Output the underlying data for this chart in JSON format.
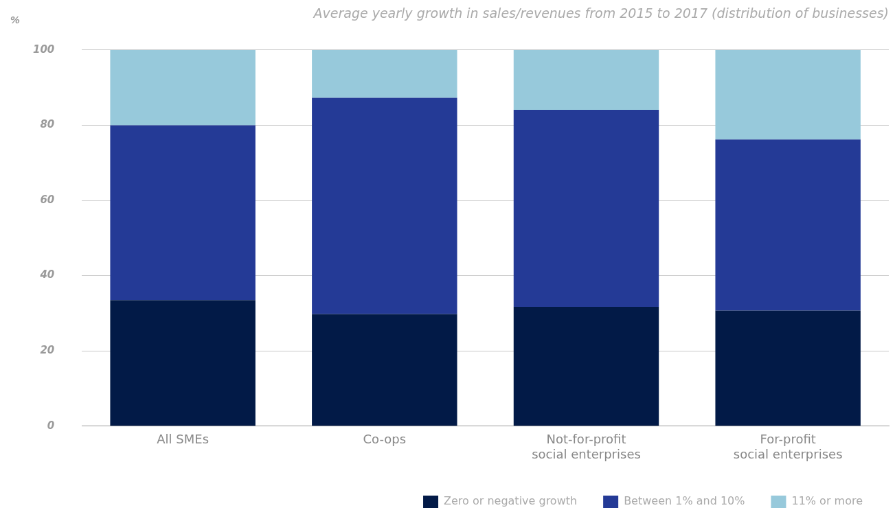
{
  "chart_data": {
    "type": "bar",
    "title": "Average yearly growth in sales/revenues from 2015 to 2017 (distribution of businesses)",
    "ylabel": "%",
    "categories": [
      "All SMEs",
      "Co-ops",
      "Not-for-profit\nsocial enterprises",
      "For-profit\nsocial enterprises"
    ],
    "stacked": true,
    "series": [
      {
        "name": "Zero or negative growth",
        "color": "#021a47",
        "values": [
          33.5,
          29.8,
          31.7,
          30.7
        ]
      },
      {
        "name": "Between 1% and 10%",
        "color": "#243a96",
        "values": [
          46.5,
          57.5,
          52.4,
          45.5
        ]
      },
      {
        "name": "11% or more",
        "color": "#97c9db",
        "values": [
          20,
          12.7,
          15.9,
          23.8
        ]
      }
    ],
    "ylim": [
      0,
      100
    ],
    "yticks": [
      0,
      20,
      40,
      60,
      80,
      100
    ],
    "grid": "y",
    "legend": "bottom right"
  }
}
